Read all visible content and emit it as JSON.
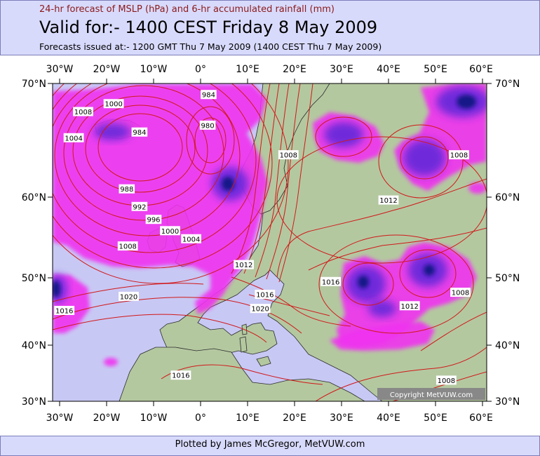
{
  "header": {
    "subtitle": "24-hr forecast of MSLP (hPa) and 6-hr accumulated rainfall (mm)",
    "title": "Valid for:- 1400 CEST Friday  8 May 2009",
    "issued": "Forecasts issued at:- 1200 GMT Thu 7 May 2009 (1400 CEST Thu 7 May 2009)"
  },
  "map": {
    "lon_labels": [
      "30°W",
      "20°W",
      "10°W",
      "0°",
      "10°E",
      "20°E",
      "30°E",
      "40°E",
      "50°E",
      "60°E"
    ],
    "lat_labels": [
      "70°N",
      "60°N",
      "50°N",
      "40°N",
      "30°N"
    ],
    "copyright": "Copyright MetVUW.com",
    "colors": {
      "ocean": "#c8c8f4",
      "land": "#b4c8a0",
      "isobar": "#d01818",
      "rain_light": "#f030f0",
      "rain_heavy": "#5a28d8",
      "rain_core": "#101880"
    },
    "isobar_labels": [
      {
        "text": "1008",
        "lon": -25,
        "lat": 67.5
      },
      {
        "text": "1000",
        "lon": -18.5,
        "lat": 68.2
      },
      {
        "text": "984",
        "lon": -13,
        "lat": 65.7
      },
      {
        "text": "1004",
        "lon": -27,
        "lat": 65.2
      },
      {
        "text": "984",
        "lon": 1.7,
        "lat": 69
      },
      {
        "text": "980",
        "lon": 1.5,
        "lat": 66.3
      },
      {
        "text": "988",
        "lon": -15.7,
        "lat": 60.7
      },
      {
        "text": "992",
        "lon": -13,
        "lat": 58.8
      },
      {
        "text": "996",
        "lon": -10,
        "lat": 57.2
      },
      {
        "text": "1000",
        "lon": -6.5,
        "lat": 55.8
      },
      {
        "text": "1004",
        "lon": -2,
        "lat": 54.8
      },
      {
        "text": "1008",
        "lon": -15.5,
        "lat": 53.9
      },
      {
        "text": "1008",
        "lon": 18.7,
        "lat": 63.7
      },
      {
        "text": "1012",
        "lon": 40,
        "lat": 59.6
      },
      {
        "text": "1008",
        "lon": 55,
        "lat": 63.7
      },
      {
        "text": "1012",
        "lon": 9.2,
        "lat": 51.6
      },
      {
        "text": "1016",
        "lon": 27.7,
        "lat": 49.4
      },
      {
        "text": "1016",
        "lon": 13.7,
        "lat": 47.5
      },
      {
        "text": "1020",
        "lon": -15.3,
        "lat": 47.2
      },
      {
        "text": "1020",
        "lon": 12.7,
        "lat": 45.4
      },
      {
        "text": "1016",
        "lon": -29,
        "lat": 45.1
      },
      {
        "text": "1012",
        "lon": 44.5,
        "lat": 45.8
      },
      {
        "text": "1008",
        "lon": 55.3,
        "lat": 47.8
      },
      {
        "text": "1016",
        "lon": -4.2,
        "lat": 34.6
      },
      {
        "text": "1008",
        "lon": 52.3,
        "lat": 33.7
      }
    ]
  },
  "footer": {
    "credit": "Plotted by James McGregor, MetVUW.com"
  }
}
